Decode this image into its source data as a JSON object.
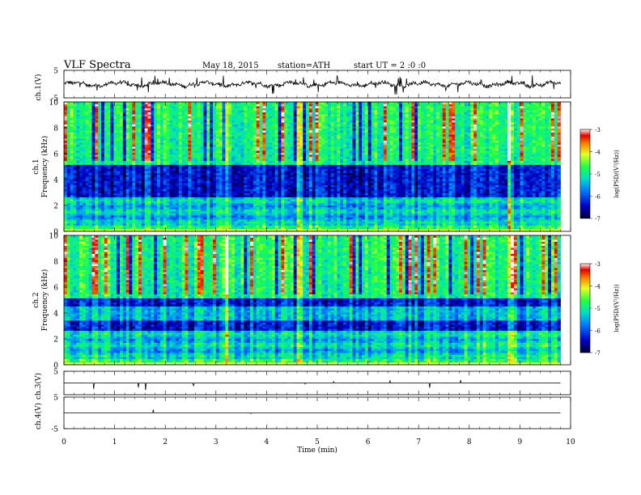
{
  "header": {
    "title": "VLF  Spectra",
    "date": "May 18, 2015",
    "station": "station=ATH",
    "start": "start  UT  =   2  :0  :0"
  },
  "colorbar": {
    "label": "log(PSD/(V²/Hz))",
    "ticks": [
      "-3",
      "-4",
      "-5",
      "-6",
      "-7"
    ]
  },
  "chart_data": [
    {
      "type": "line",
      "name": "ch.1 waveform",
      "ylabel": "ch.1(V)",
      "ylim": [
        -5,
        5
      ],
      "yticks": [
        "5",
        "-5"
      ],
      "xlim": [
        0,
        10
      ],
      "description_values": {
        "baseline": 0,
        "spikes_range": [
          -4,
          4
        ]
      }
    },
    {
      "type": "heatmap",
      "ylabel_channel": "ch.1",
      "ylabel": "Frequency  (kHz)",
      "ylim": [
        0,
        10
      ],
      "yticks": [
        "0",
        "2",
        "4",
        "6",
        "8",
        "10"
      ],
      "xlim": [
        0,
        9.8
      ],
      "value_range": [
        -7,
        -3
      ],
      "burst_times_min": [
        3.2,
        4.65,
        8.8
      ]
    },
    {
      "type": "heatmap",
      "ylabel_channel": "ch.2",
      "ylabel": "Frequency  (kHz)",
      "ylim": [
        0,
        10
      ],
      "yticks": [
        "0",
        "2",
        "4",
        "6",
        "8",
        "10"
      ],
      "xlim": [
        0,
        9.8
      ],
      "value_range": [
        -7,
        -3
      ],
      "burst_times_min": [
        3.2,
        4.65,
        8.8
      ]
    },
    {
      "type": "line",
      "name": "ch.3 waveform",
      "ylabel": "ch.3(V)",
      "ylim": [
        -5,
        5
      ],
      "yticks": [
        "5"
      ],
      "xlim": [
        0,
        10
      ],
      "description_values": {
        "baseline": 0
      }
    },
    {
      "type": "line",
      "name": "ch.4 waveform",
      "ylabel": "ch.4(V)",
      "ylim": [
        -5,
        5
      ],
      "yticks": [
        "5",
        "-5"
      ],
      "xlim": [
        0,
        10
      ],
      "description_values": {
        "baseline": 0
      }
    }
  ],
  "xaxis": {
    "label": "Time  (min)",
    "ticks": [
      "0",
      "1",
      "2",
      "3",
      "4",
      "5",
      "6",
      "7",
      "8",
      "9",
      "10"
    ]
  }
}
